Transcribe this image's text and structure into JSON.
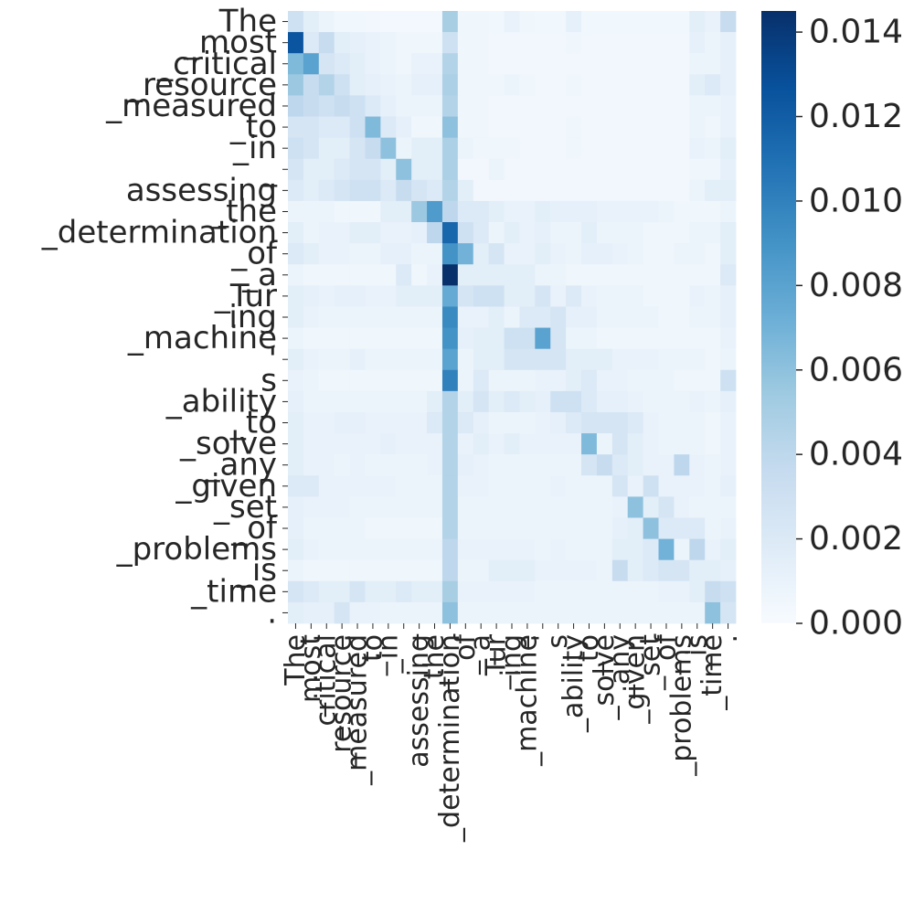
{
  "chart_data": {
    "type": "heatmap",
    "title": "",
    "xlabel": "",
    "ylabel": "",
    "tokens": [
      "The",
      "_most",
      "_critical",
      "_resource",
      "_measured",
      "_to",
      "_in",
      "_",
      "assessing",
      "_the",
      "_determination",
      "_of",
      "_a",
      "_Tur",
      "ing",
      "_machine",
      "'",
      "s",
      "_ability",
      "_to",
      "_solve",
      "_any",
      "_given",
      "_set",
      "_of",
      "_problems",
      "_is",
      "_time",
      "."
    ],
    "colorbar": {
      "min": 0.0,
      "max": 0.0145,
      "ticks": [
        0.0,
        0.002,
        0.004,
        0.006,
        0.008,
        0.01,
        0.012,
        0.014
      ],
      "tick_labels": [
        "0.000",
        "0.002",
        "0.004",
        "0.006",
        "0.008",
        "0.010",
        "0.012",
        "0.014"
      ],
      "colormap": "Blues"
    },
    "values": [
      [
        0.003,
        0.0015,
        0.0008,
        0.0005,
        0.0005,
        0.0004,
        0.0003,
        0.0003,
        0.0003,
        0.0003,
        0.005,
        0.0006,
        0.0006,
        0.0005,
        0.001,
        0.0006,
        0.0005,
        0.0005,
        0.0012,
        0.0005,
        0.0005,
        0.0005,
        0.0005,
        0.0005,
        0.0005,
        0.0005,
        0.0015,
        0.001,
        0.0035
      ],
      [
        0.0125,
        0.002,
        0.0035,
        0.0015,
        0.0012,
        0.001,
        0.0008,
        0.0006,
        0.0006,
        0.0006,
        0.003,
        0.0006,
        0.0006,
        0.0004,
        0.0004,
        0.0004,
        0.0004,
        0.0004,
        0.0006,
        0.0004,
        0.0004,
        0.0004,
        0.0004,
        0.0004,
        0.0004,
        0.0004,
        0.0012,
        0.0008,
        0.0012
      ],
      [
        0.0065,
        0.008,
        0.0025,
        0.002,
        0.0015,
        0.001,
        0.0008,
        0.0006,
        0.001,
        0.001,
        0.0045,
        0.0006,
        0.0006,
        0.0004,
        0.0004,
        0.0004,
        0.0004,
        0.0004,
        0.0004,
        0.0004,
        0.0004,
        0.0004,
        0.0004,
        0.0004,
        0.0004,
        0.0004,
        0.0008,
        0.0008,
        0.0012
      ],
      [
        0.0055,
        0.0035,
        0.0045,
        0.003,
        0.0015,
        0.0012,
        0.001,
        0.0008,
        0.0012,
        0.0012,
        0.0048,
        0.0006,
        0.0006,
        0.0006,
        0.0008,
        0.0006,
        0.0004,
        0.0004,
        0.0006,
        0.0004,
        0.0004,
        0.0004,
        0.0004,
        0.0004,
        0.0004,
        0.0004,
        0.0015,
        0.002,
        0.0012
      ],
      [
        0.004,
        0.0035,
        0.003,
        0.0035,
        0.003,
        0.002,
        0.0012,
        0.0008,
        0.0008,
        0.0008,
        0.0045,
        0.0006,
        0.0006,
        0.0004,
        0.0004,
        0.0004,
        0.0004,
        0.0004,
        0.0004,
        0.0004,
        0.0004,
        0.0004,
        0.0004,
        0.0004,
        0.0004,
        0.0004,
        0.0008,
        0.0008,
        0.001
      ],
      [
        0.0025,
        0.0025,
        0.002,
        0.002,
        0.003,
        0.0065,
        0.002,
        0.0012,
        0.0006,
        0.0006,
        0.006,
        0.0006,
        0.0006,
        0.0004,
        0.0004,
        0.0004,
        0.0004,
        0.0004,
        0.0006,
        0.0004,
        0.0004,
        0.0004,
        0.0004,
        0.0004,
        0.0004,
        0.0004,
        0.0008,
        0.0006,
        0.001
      ],
      [
        0.003,
        0.0025,
        0.0015,
        0.0015,
        0.0025,
        0.0035,
        0.006,
        0.0008,
        0.0015,
        0.0015,
        0.0048,
        0.0008,
        0.0006,
        0.0006,
        0.0006,
        0.0004,
        0.0004,
        0.0004,
        0.0006,
        0.0004,
        0.0004,
        0.0004,
        0.0004,
        0.0004,
        0.0004,
        0.0004,
        0.001,
        0.0008,
        0.0015
      ],
      [
        0.0025,
        0.0015,
        0.0015,
        0.002,
        0.0025,
        0.0025,
        0.0015,
        0.006,
        0.0015,
        0.0015,
        0.0048,
        0.0004,
        0.0004,
        0.0008,
        0.0004,
        0.0004,
        0.0004,
        0.0004,
        0.0004,
        0.0004,
        0.0004,
        0.0004,
        0.0004,
        0.0004,
        0.0004,
        0.0004,
        0.0006,
        0.0006,
        0.0012
      ],
      [
        0.002,
        0.0015,
        0.002,
        0.0025,
        0.003,
        0.003,
        0.002,
        0.0035,
        0.0025,
        0.002,
        0.0045,
        0.0015,
        0.0004,
        0.0004,
        0.0004,
        0.0004,
        0.0004,
        0.0004,
        0.0004,
        0.0004,
        0.0004,
        0.0004,
        0.0004,
        0.0004,
        0.0004,
        0.0004,
        0.0008,
        0.0015,
        0.0015
      ],
      [
        0.0008,
        0.0008,
        0.0008,
        0.0006,
        0.0006,
        0.0006,
        0.0015,
        0.0015,
        0.0055,
        0.0085,
        0.004,
        0.002,
        0.002,
        0.0015,
        0.001,
        0.001,
        0.0015,
        0.0012,
        0.0012,
        0.0012,
        0.001,
        0.001,
        0.001,
        0.001,
        0.0008,
        0.0006,
        0.0006,
        0.0006,
        0.0008
      ],
      [
        0.0015,
        0.0008,
        0.001,
        0.001,
        0.0015,
        0.0015,
        0.001,
        0.001,
        0.0012,
        0.004,
        0.0115,
        0.003,
        0.002,
        0.0008,
        0.0015,
        0.001,
        0.0012,
        0.0008,
        0.0008,
        0.0015,
        0.0008,
        0.0008,
        0.0008,
        0.0006,
        0.0006,
        0.0006,
        0.0008,
        0.0008,
        0.0015
      ],
      [
        0.002,
        0.0015,
        0.001,
        0.001,
        0.0008,
        0.0008,
        0.0012,
        0.0012,
        0.0008,
        0.0008,
        0.009,
        0.007,
        0.0015,
        0.0025,
        0.001,
        0.001,
        0.0015,
        0.001,
        0.0008,
        0.0012,
        0.0012,
        0.001,
        0.0008,
        0.0006,
        0.0006,
        0.0008,
        0.0008,
        0.0006,
        0.0015
      ],
      [
        0.0008,
        0.0006,
        0.0006,
        0.0006,
        0.0006,
        0.0006,
        0.0006,
        0.002,
        0.0006,
        0.001,
        0.0145,
        0.0015,
        0.0015,
        0.0015,
        0.0015,
        0.0015,
        0.0008,
        0.0008,
        0.0006,
        0.0006,
        0.0006,
        0.0006,
        0.0006,
        0.0006,
        0.0006,
        0.0006,
        0.0006,
        0.0006,
        0.002
      ],
      [
        0.0015,
        0.0012,
        0.001,
        0.0012,
        0.0012,
        0.001,
        0.001,
        0.0015,
        0.0015,
        0.0015,
        0.0075,
        0.0025,
        0.003,
        0.003,
        0.0015,
        0.0015,
        0.0025,
        0.001,
        0.002,
        0.001,
        0.0008,
        0.0008,
        0.0008,
        0.0006,
        0.0006,
        0.0006,
        0.001,
        0.0008,
        0.0012
      ],
      [
        0.0015,
        0.001,
        0.0008,
        0.0008,
        0.0008,
        0.0008,
        0.0008,
        0.0008,
        0.0008,
        0.0008,
        0.0095,
        0.001,
        0.001,
        0.0015,
        0.0008,
        0.002,
        0.002,
        0.0025,
        0.0012,
        0.0012,
        0.0008,
        0.0008,
        0.0008,
        0.0008,
        0.0006,
        0.0006,
        0.0008,
        0.0008,
        0.0012
      ],
      [
        0.0008,
        0.0006,
        0.0006,
        0.0006,
        0.0006,
        0.0006,
        0.0006,
        0.0006,
        0.0006,
        0.0006,
        0.009,
        0.0012,
        0.0015,
        0.0015,
        0.003,
        0.003,
        0.008,
        0.0025,
        0.0008,
        0.0008,
        0.0006,
        0.0006,
        0.0006,
        0.0006,
        0.0006,
        0.0006,
        0.0006,
        0.0006,
        0.001
      ],
      [
        0.0015,
        0.001,
        0.0008,
        0.0008,
        0.0012,
        0.0008,
        0.0008,
        0.0008,
        0.0008,
        0.0008,
        0.008,
        0.0008,
        0.0015,
        0.0015,
        0.0025,
        0.0025,
        0.0025,
        0.0025,
        0.0015,
        0.0015,
        0.0015,
        0.001,
        0.001,
        0.001,
        0.0008,
        0.0008,
        0.0008,
        0.0006,
        0.0008
      ],
      [
        0.001,
        0.0008,
        0.0006,
        0.0006,
        0.0006,
        0.0006,
        0.0006,
        0.0006,
        0.0006,
        0.0006,
        0.01,
        0.0008,
        0.002,
        0.0008,
        0.0008,
        0.0008,
        0.001,
        0.001,
        0.0015,
        0.002,
        0.001,
        0.001,
        0.0008,
        0.0008,
        0.0008,
        0.0006,
        0.0006,
        0.0006,
        0.003
      ],
      [
        0.0012,
        0.0008,
        0.0008,
        0.0008,
        0.0008,
        0.0008,
        0.0008,
        0.0008,
        0.0008,
        0.0015,
        0.0045,
        0.0015,
        0.0025,
        0.0015,
        0.002,
        0.0015,
        0.0012,
        0.003,
        0.003,
        0.002,
        0.0012,
        0.0012,
        0.001,
        0.0008,
        0.0008,
        0.0008,
        0.001,
        0.0008,
        0.0012
      ],
      [
        0.0015,
        0.001,
        0.001,
        0.0012,
        0.0012,
        0.001,
        0.001,
        0.001,
        0.001,
        0.002,
        0.0045,
        0.002,
        0.0012,
        0.0008,
        0.0008,
        0.0008,
        0.001,
        0.0012,
        0.002,
        0.0025,
        0.0025,
        0.0025,
        0.002,
        0.001,
        0.0008,
        0.0008,
        0.0008,
        0.0006,
        0.001
      ],
      [
        0.0015,
        0.001,
        0.001,
        0.001,
        0.001,
        0.001,
        0.0012,
        0.001,
        0.001,
        0.001,
        0.0045,
        0.001,
        0.0015,
        0.001,
        0.0015,
        0.001,
        0.001,
        0.001,
        0.001,
        0.0065,
        0.0008,
        0.0025,
        0.0015,
        0.001,
        0.0008,
        0.0008,
        0.0008,
        0.0006,
        0.001
      ],
      [
        0.0015,
        0.001,
        0.001,
        0.0008,
        0.001,
        0.0008,
        0.0008,
        0.0008,
        0.0008,
        0.001,
        0.0045,
        0.0012,
        0.001,
        0.0008,
        0.0008,
        0.0008,
        0.0008,
        0.0008,
        0.0008,
        0.0025,
        0.0035,
        0.002,
        0.0015,
        0.001,
        0.001,
        0.004,
        0.001,
        0.0008,
        0.001
      ],
      [
        0.002,
        0.002,
        0.001,
        0.001,
        0.001,
        0.001,
        0.001,
        0.0008,
        0.0008,
        0.0008,
        0.0045,
        0.001,
        0.001,
        0.0008,
        0.0008,
        0.0008,
        0.0008,
        0.001,
        0.0008,
        0.0008,
        0.0008,
        0.0025,
        0.001,
        0.003,
        0.001,
        0.001,
        0.001,
        0.0008,
        0.0012
      ],
      [
        0.0012,
        0.001,
        0.001,
        0.001,
        0.0008,
        0.0008,
        0.0008,
        0.0008,
        0.0008,
        0.0008,
        0.0045,
        0.0008,
        0.0008,
        0.0008,
        0.0008,
        0.0008,
        0.0008,
        0.0008,
        0.0008,
        0.0008,
        0.0008,
        0.001,
        0.006,
        0.0015,
        0.0025,
        0.001,
        0.0008,
        0.0008,
        0.0008
      ],
      [
        0.0012,
        0.0008,
        0.0008,
        0.0008,
        0.0008,
        0.0006,
        0.0006,
        0.0006,
        0.0006,
        0.0006,
        0.0045,
        0.0008,
        0.0008,
        0.0008,
        0.0008,
        0.0008,
        0.0008,
        0.0008,
        0.0008,
        0.0008,
        0.0008,
        0.0012,
        0.0015,
        0.006,
        0.002,
        0.002,
        0.002,
        0.0008,
        0.001
      ],
      [
        0.0015,
        0.001,
        0.0008,
        0.0008,
        0.0008,
        0.0008,
        0.0008,
        0.0008,
        0.0008,
        0.0008,
        0.004,
        0.001,
        0.001,
        0.001,
        0.001,
        0.001,
        0.0008,
        0.001,
        0.0008,
        0.0008,
        0.0008,
        0.0015,
        0.0015,
        0.002,
        0.007,
        0.0008,
        0.004,
        0.001,
        0.0015
      ],
      [
        0.0008,
        0.0006,
        0.0006,
        0.0006,
        0.0006,
        0.0006,
        0.0006,
        0.0006,
        0.0006,
        0.0006,
        0.004,
        0.0008,
        0.0008,
        0.0015,
        0.0015,
        0.0015,
        0.001,
        0.001,
        0.001,
        0.001,
        0.0008,
        0.0035,
        0.0015,
        0.002,
        0.0025,
        0.0025,
        0.0015,
        0.0015,
        0.0012
      ],
      [
        0.0025,
        0.002,
        0.0015,
        0.0015,
        0.0025,
        0.0015,
        0.0015,
        0.002,
        0.0015,
        0.0015,
        0.005,
        0.001,
        0.001,
        0.001,
        0.001,
        0.001,
        0.0008,
        0.0008,
        0.0008,
        0.0008,
        0.0008,
        0.0008,
        0.0008,
        0.0008,
        0.001,
        0.001,
        0.0015,
        0.0035,
        0.003
      ],
      [
        0.0015,
        0.0012,
        0.0012,
        0.0025,
        0.001,
        0.001,
        0.0008,
        0.0008,
        0.0008,
        0.0008,
        0.006,
        0.0008,
        0.0008,
        0.0008,
        0.0008,
        0.0008,
        0.0008,
        0.0008,
        0.0008,
        0.0008,
        0.0008,
        0.0008,
        0.0008,
        0.0008,
        0.0008,
        0.0008,
        0.0008,
        0.006,
        0.0025
      ]
    ]
  }
}
